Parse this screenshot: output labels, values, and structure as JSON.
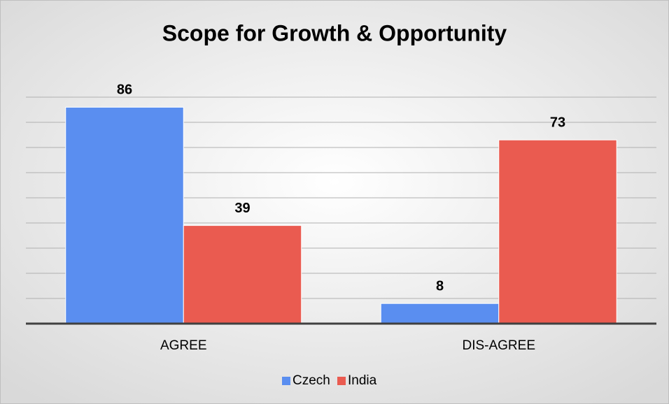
{
  "chart_data": {
    "type": "bar",
    "title": "Scope for Growth & Opportunity",
    "categories": [
      "AGREE",
      "DIS-AGREE"
    ],
    "series": [
      {
        "name": "Czech",
        "color": "#5a8ef0",
        "values": [
          86,
          8
        ]
      },
      {
        "name": "India",
        "color": "#ea5b50",
        "values": [
          39,
          73
        ]
      }
    ],
    "ylim": [
      0,
      90
    ],
    "yticks": [
      0,
      10,
      20,
      30,
      40,
      50,
      60,
      70,
      80,
      90
    ],
    "grid": true,
    "legend": "bottom"
  }
}
